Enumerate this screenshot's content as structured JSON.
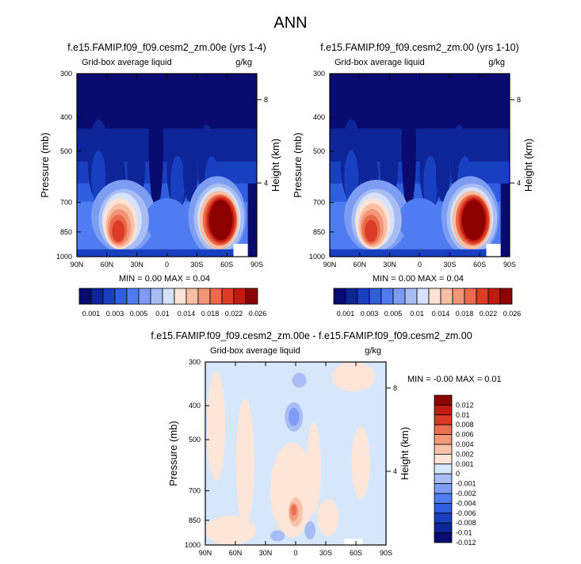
{
  "page_title": "ANN",
  "colors": {
    "cb_seq": [
      "#0a0b6e",
      "#0d2596",
      "#173fc0",
      "#2f5fe0",
      "#4f7cf0",
      "#7d9df2",
      "#a9bdf5",
      "#d6e2fb",
      "#fde3d6",
      "#f8bfa5",
      "#f39577",
      "#ea6a4c",
      "#dc3b26",
      "#c11a10",
      "#8c0000"
    ],
    "cb_div": [
      "#0a0b6e",
      "#0d2596",
      "#173fc0",
      "#2f5fe0",
      "#4f7cf0",
      "#7d9df2",
      "#a9bdf5",
      "#d6e6fb",
      "#fde6d8",
      "#f8c2a8",
      "#f39a7c",
      "#ea6e50",
      "#dc3b26",
      "#c11a10",
      "#8c0000"
    ]
  },
  "chart_data": [
    {
      "type": "heatmap",
      "title": "f.e15.FAMIP.f09_f09.cesm2_zm.00e (yrs 1-4)",
      "variable": "Grid-box average liquid",
      "units": "g/kg",
      "ylabel": "Pressure (mb)",
      "ylabel_right": "Height (km)",
      "x_ticks": [
        "90N",
        "60N",
        "30N",
        "0",
        "30S",
        "60S",
        "90S"
      ],
      "y_ticks": [
        "300",
        "400",
        "500",
        "700",
        "850",
        "1000"
      ],
      "y_right_ticks": [
        "8",
        "4"
      ],
      "stats": {
        "min_label": "MIN =",
        "min": "0.00",
        "max_label": "MAX =",
        "max": "0.04"
      },
      "colorbar_labels": [
        "0.001",
        "0.003",
        "0.005",
        "0.01",
        "0.014",
        "0.018",
        "0.022",
        "0.026"
      ]
    },
    {
      "type": "heatmap",
      "title": "f.e15.FAMIP.f09_f09.cesm2_zm.00 (yrs 1-10)",
      "variable": "Grid-box average liquid",
      "units": "g/kg",
      "ylabel": "Pressure (mb)",
      "ylabel_right": "Height (km)",
      "x_ticks": [
        "90N",
        "60N",
        "30N",
        "0",
        "30S",
        "60S",
        "90S"
      ],
      "y_ticks": [
        "300",
        "400",
        "500",
        "700",
        "850",
        "1000"
      ],
      "y_right_ticks": [
        "8",
        "4"
      ],
      "stats": {
        "min_label": "MIN =",
        "min": "0.00",
        "max_label": "MAX =",
        "max": "0.04"
      },
      "colorbar_labels": [
        "0.001",
        "0.003",
        "0.005",
        "0.01",
        "0.014",
        "0.018",
        "0.022",
        "0.026"
      ]
    },
    {
      "type": "heatmap",
      "title": "f.e15.FAMIP.f09_f09.cesm2_zm.00e - f.e15.FAMIP.f09_f09.cesm2_zm.00",
      "variable": "Grid-box average liquid",
      "units": "g/kg",
      "ylabel": "Pressure (mb)",
      "ylabel_right": "Height (km)",
      "x_ticks": [
        "90N",
        "60N",
        "30N",
        "0",
        "30S",
        "60S",
        "90S"
      ],
      "y_ticks": [
        "300",
        "400",
        "500",
        "700",
        "850",
        "1000"
      ],
      "y_right_ticks": [
        "8",
        "4"
      ],
      "stats": {
        "min_label": "MIN =",
        "min": "-0.00",
        "max_label": "MAX =",
        "max": "0.01"
      },
      "colorbar_labels": [
        "0.012",
        "0.01",
        "0.008",
        "0.006",
        "0.004",
        "0.002",
        "0.001",
        "0",
        "-0.001",
        "-0.002",
        "-0.004",
        "-0.006",
        "-0.008",
        "-0.01",
        "-0.012"
      ]
    }
  ]
}
